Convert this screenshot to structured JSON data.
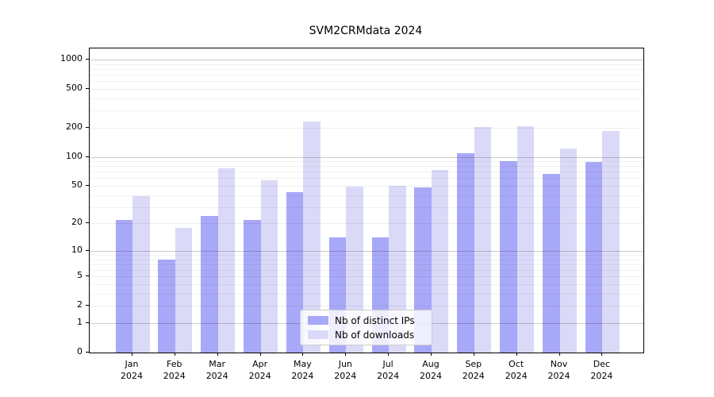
{
  "title": "SVM2CRMdata 2024",
  "chart_data": {
    "type": "bar",
    "title": "SVM2CRMdata 2024",
    "scale": "symlog-log10(1+x)",
    "grid": true,
    "legend_position": "lower center",
    "year": "2024",
    "categories": [
      {
        "month": "Jan",
        "year": "2024"
      },
      {
        "month": "Feb",
        "year": "2024"
      },
      {
        "month": "Mar",
        "year": "2024"
      },
      {
        "month": "Apr",
        "year": "2024"
      },
      {
        "month": "May",
        "year": "2024"
      },
      {
        "month": "Jun",
        "year": "2024"
      },
      {
        "month": "Jul",
        "year": "2024"
      },
      {
        "month": "Aug",
        "year": "2024"
      },
      {
        "month": "Sep",
        "year": "2024"
      },
      {
        "month": "Oct",
        "year": "2024"
      },
      {
        "month": "Nov",
        "year": "2024"
      },
      {
        "month": "Dec",
        "year": "2024"
      }
    ],
    "series": [
      {
        "name": "Nb of distinct IPs",
        "color": "#a8a8f8",
        "values": [
          22,
          8,
          24,
          22,
          43,
          14,
          14,
          48,
          109,
          91,
          66,
          88
        ]
      },
      {
        "name": "Nb of downloads",
        "color": "#dadaf8",
        "values": [
          39,
          18,
          76,
          57,
          232,
          49,
          50,
          73,
          203,
          208,
          122,
          185
        ]
      }
    ],
    "yticks": [
      0,
      1,
      2,
      5,
      10,
      20,
      50,
      100,
      200,
      500,
      1000
    ],
    "ytick_labels": [
      "0",
      "1",
      "2",
      "5",
      "10",
      "20",
      "50",
      "100",
      "200",
      "500",
      "1000"
    ],
    "minor_yticks": [
      3,
      4,
      6,
      7,
      8,
      9,
      30,
      40,
      60,
      70,
      80,
      90,
      300,
      400,
      600,
      700,
      800,
      900
    ],
    "ylim": [
      0,
      1300
    ]
  },
  "colors": {
    "axis": "#000000",
    "series_ips": "#a8a8f8",
    "series_downloads": "#dadaf8",
    "grid_major": "rgba(0,0,0,0.20)",
    "grid_labeled": "rgba(0,0,0,0.07)",
    "grid_minor": "rgba(0,0,0,0.05)"
  }
}
